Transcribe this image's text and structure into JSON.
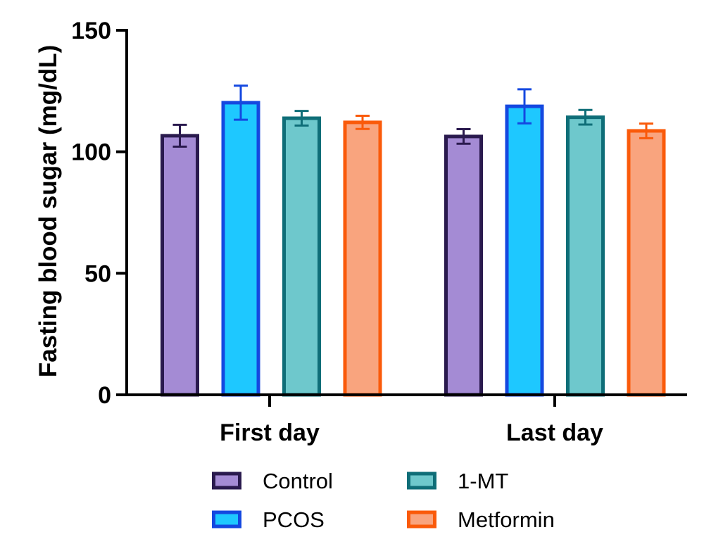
{
  "chart_data": {
    "type": "bar",
    "title": "",
    "xlabel": "",
    "ylabel": "Fasting blood sugar (mg/dL)",
    "ylim": [
      0,
      150
    ],
    "yticks": [
      0,
      50,
      100,
      150
    ],
    "categories": [
      "First day",
      "Last day"
    ],
    "grid": false,
    "legend_position": "bottom",
    "error_bars": true,
    "series": [
      {
        "name": "Control",
        "values": [
          106.6,
          106.3
        ],
        "errors": [
          4.5,
          3
        ],
        "fill": "#a48bd4",
        "stroke": "#2a1a4e"
      },
      {
        "name": "PCOS",
        "values": [
          120.2,
          118.7
        ],
        "errors": [
          7,
          7
        ],
        "fill": "#1ec8ff",
        "stroke": "#1448e0"
      },
      {
        "name": "1-MT",
        "values": [
          113.8,
          114.2
        ],
        "errors": [
          3,
          3
        ],
        "fill": "#6ec8cc",
        "stroke": "#0f6e78"
      },
      {
        "name": "Metformin",
        "values": [
          112.1,
          108.6
        ],
        "errors": [
          2.7,
          3
        ],
        "fill": "#f9a47e",
        "stroke": "#fa5a0a"
      }
    ]
  }
}
